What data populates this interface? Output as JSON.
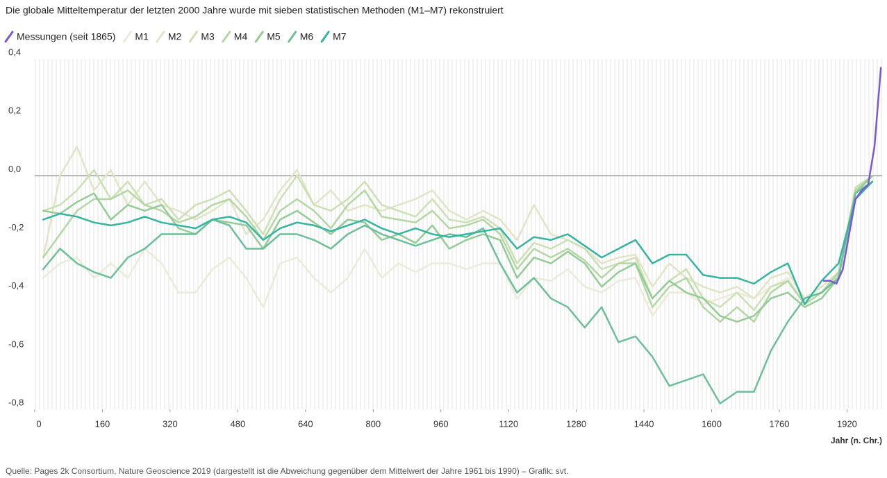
{
  "chart_data": {
    "type": "line",
    "title": "Die globale Mitteltemperatur der letzten 2000 Jahre wurde mit sieben statistischen Methoden (M1–M7) rekonstruiert",
    "x_label": "Jahr (n. Chr.)",
    "source": "Quelle: Pages 2k Consortium, Nature Geoscience 2019 (dargestellt ist die Abweichung gegenüber dem Mittelwert der Jahre 1961 bis 1990) – Grafik: svt.",
    "xlim": [
      0,
      2003
    ],
    "ylim": [
      -0.8,
      0.4
    ],
    "xticks": [
      0,
      160,
      320,
      480,
      640,
      800,
      960,
      1120,
      1280,
      1440,
      1600,
      1760,
      1920
    ],
    "yticks": [
      {
        "value": -0.8,
        "label": "-0,8"
      },
      {
        "value": -0.6,
        "label": "-0,6"
      },
      {
        "value": -0.4,
        "label": "-0,4"
      },
      {
        "value": -0.2,
        "label": "-0,2"
      },
      {
        "value": 0,
        "label": "0,0"
      },
      {
        "value": 0.2,
        "label": "0,2"
      },
      {
        "value": 0.4,
        "label": "0,4"
      }
    ],
    "x": [
      20,
      60,
      100,
      140,
      180,
      220,
      260,
      300,
      340,
      380,
      420,
      460,
      500,
      540,
      580,
      620,
      660,
      700,
      740,
      780,
      820,
      860,
      900,
      940,
      980,
      1020,
      1060,
      1100,
      1140,
      1180,
      1220,
      1260,
      1300,
      1340,
      1380,
      1420,
      1460,
      1500,
      1540,
      1580,
      1620,
      1660,
      1700,
      1740,
      1780,
      1820,
      1860,
      1900,
      1940,
      1980
    ],
    "series": [
      {
        "name": "Messungen (seit 1865)",
        "color": "#7b57d4",
        "x": [
          1865,
          1880,
          1895,
          1910,
          1925,
          1940,
          1955,
          1970,
          1985,
          2000
        ],
        "values": [
          -0.36,
          -0.36,
          -0.37,
          -0.32,
          -0.2,
          -0.08,
          -0.05,
          -0.03,
          0.1,
          0.37
        ]
      },
      {
        "name": "M1",
        "color": "#ecebd9",
        "values": [
          -0.35,
          -0.3,
          -0.28,
          -0.35,
          -0.3,
          -0.35,
          -0.25,
          -0.3,
          -0.4,
          -0.4,
          -0.32,
          -0.28,
          -0.35,
          -0.45,
          -0.3,
          -0.28,
          -0.35,
          -0.4,
          -0.35,
          -0.25,
          -0.35,
          -0.3,
          -0.33,
          -0.3,
          -0.3,
          -0.32,
          -0.3,
          -0.3,
          -0.42,
          -0.35,
          -0.36,
          -0.32,
          -0.38,
          -0.4,
          -0.36,
          -0.35,
          -0.48,
          -0.4,
          -0.4,
          -0.44,
          -0.42,
          -0.4,
          -0.42,
          -0.38,
          -0.35,
          -0.44,
          -0.4,
          -0.35,
          -0.05,
          0.0
        ]
      },
      {
        "name": "M2",
        "color": "#dfe5c6",
        "values": [
          -0.28,
          0.0,
          0.1,
          -0.05,
          0.02,
          -0.1,
          -0.02,
          -0.1,
          -0.12,
          -0.15,
          -0.12,
          -0.08,
          -0.2,
          -0.15,
          -0.05,
          0.02,
          -0.1,
          -0.05,
          -0.12,
          -0.1,
          -0.12,
          -0.1,
          -0.08,
          -0.05,
          -0.12,
          -0.15,
          -0.12,
          -0.15,
          -0.22,
          -0.1,
          -0.2,
          -0.22,
          -0.25,
          -0.3,
          -0.28,
          -0.27,
          -0.38,
          -0.3,
          -0.35,
          -0.38,
          -0.4,
          -0.38,
          -0.42,
          -0.35,
          -0.33,
          -0.42,
          -0.38,
          -0.33,
          -0.05,
          0.0
        ]
      },
      {
        "name": "M3",
        "color": "#cbe0b3",
        "values": [
          -0.12,
          -0.1,
          -0.05,
          0.02,
          -0.08,
          -0.02,
          -0.1,
          -0.08,
          -0.15,
          -0.1,
          -0.08,
          -0.05,
          -0.12,
          -0.2,
          -0.08,
          0.0,
          -0.1,
          -0.12,
          -0.08,
          -0.02,
          -0.1,
          -0.12,
          -0.14,
          -0.08,
          -0.15,
          -0.16,
          -0.14,
          -0.18,
          -0.3,
          -0.23,
          -0.25,
          -0.22,
          -0.25,
          -0.32,
          -0.3,
          -0.28,
          -0.42,
          -0.36,
          -0.32,
          -0.42,
          -0.45,
          -0.4,
          -0.46,
          -0.38,
          -0.36,
          -0.44,
          -0.4,
          -0.34,
          -0.04,
          0.0
        ]
      },
      {
        "name": "M4",
        "color": "#b3d7a2",
        "values": [
          -0.28,
          -0.2,
          -0.12,
          -0.08,
          -0.08,
          -0.05,
          -0.1,
          -0.12,
          -0.16,
          -0.14,
          -0.1,
          -0.08,
          -0.14,
          -0.22,
          -0.12,
          -0.08,
          -0.12,
          -0.18,
          -0.1,
          -0.05,
          -0.14,
          -0.15,
          -0.16,
          -0.12,
          -0.18,
          -0.17,
          -0.15,
          -0.2,
          -0.32,
          -0.25,
          -0.28,
          -0.25,
          -0.29,
          -0.35,
          -0.3,
          -0.3,
          -0.45,
          -0.38,
          -0.35,
          -0.45,
          -0.5,
          -0.45,
          -0.5,
          -0.4,
          -0.36,
          -0.44,
          -0.4,
          -0.33,
          -0.05,
          0.0
        ]
      },
      {
        "name": "M5",
        "color": "#94cc96",
        "values": [
          -0.12,
          -0.13,
          -0.09,
          -0.06,
          -0.15,
          -0.1,
          -0.12,
          -0.1,
          -0.18,
          -0.2,
          -0.15,
          -0.16,
          -0.17,
          -0.25,
          -0.15,
          -0.12,
          -0.16,
          -0.2,
          -0.15,
          -0.16,
          -0.22,
          -0.2,
          -0.23,
          -0.17,
          -0.25,
          -0.22,
          -0.2,
          -0.22,
          -0.35,
          -0.28,
          -0.3,
          -0.26,
          -0.3,
          -0.38,
          -0.33,
          -0.3,
          -0.42,
          -0.36,
          -0.4,
          -0.42,
          -0.48,
          -0.5,
          -0.48,
          -0.42,
          -0.4,
          -0.45,
          -0.42,
          -0.35,
          -0.06,
          0.0
        ]
      },
      {
        "name": "M6",
        "color": "#6cbf98",
        "values": [
          -0.32,
          -0.25,
          -0.3,
          -0.33,
          -0.35,
          -0.28,
          -0.25,
          -0.2,
          -0.2,
          -0.2,
          -0.15,
          -0.17,
          -0.25,
          -0.25,
          -0.2,
          -0.2,
          -0.22,
          -0.25,
          -0.2,
          -0.17,
          -0.2,
          -0.22,
          -0.24,
          -0.22,
          -0.2,
          -0.21,
          -0.18,
          -0.3,
          -0.4,
          -0.35,
          -0.42,
          -0.45,
          -0.52,
          -0.45,
          -0.57,
          -0.55,
          -0.62,
          -0.72,
          -0.7,
          -0.68,
          -0.78,
          -0.74,
          -0.74,
          -0.6,
          -0.5,
          -0.42,
          -0.4,
          -0.35,
          -0.06,
          -0.02
        ]
      },
      {
        "name": "M7",
        "color": "#35b49e",
        "values": [
          -0.15,
          -0.13,
          -0.14,
          -0.16,
          -0.17,
          -0.16,
          -0.14,
          -0.16,
          -0.17,
          -0.18,
          -0.15,
          -0.14,
          -0.16,
          -0.22,
          -0.18,
          -0.16,
          -0.17,
          -0.19,
          -0.17,
          -0.15,
          -0.18,
          -0.2,
          -0.18,
          -0.2,
          -0.21,
          -0.2,
          -0.19,
          -0.18,
          -0.25,
          -0.21,
          -0.22,
          -0.2,
          -0.24,
          -0.28,
          -0.25,
          -0.22,
          -0.3,
          -0.27,
          -0.27,
          -0.34,
          -0.35,
          -0.35,
          -0.37,
          -0.33,
          -0.3,
          -0.44,
          -0.36,
          -0.3,
          -0.08,
          -0.02
        ]
      }
    ]
  }
}
